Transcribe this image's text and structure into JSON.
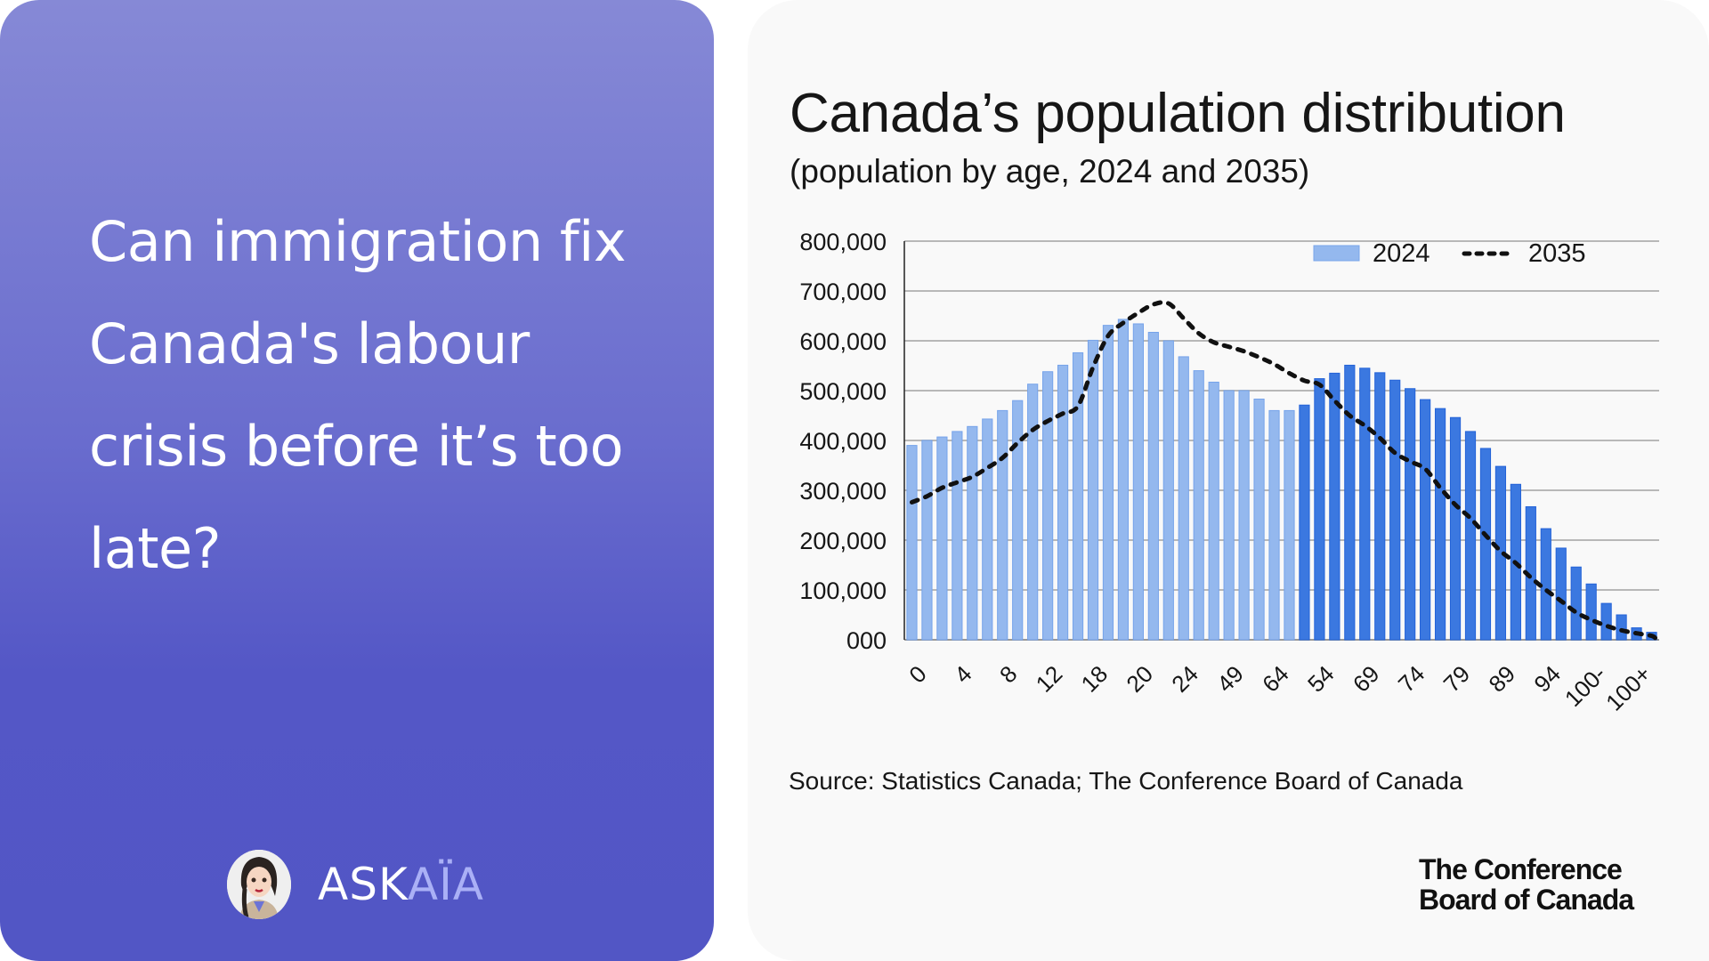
{
  "left": {
    "headline": "Can immigration fix Canada's labour crisis before it’s too late?",
    "brand": {
      "name_main": "ASK",
      "name_accent": "AÏA",
      "avatar_icon": "woman-avatar-icon"
    }
  },
  "colors": {
    "bar_2024_light": "#94b8ee",
    "bar_2024_dark": "#3b78e0",
    "line_2035": "#111111",
    "panel_gradient_top": "#8689d6",
    "panel_gradient_bottom": "#5256c5",
    "brand_accent": "#aab0f6"
  },
  "chart_data": {
    "type": "bar",
    "title": "Canada’s population distribution",
    "subtitle": "(population by age, 2024 and 2035)",
    "ylim": [
      0,
      800000
    ],
    "y_ticks": [
      "800,000",
      "700,000",
      "600,000",
      "500,000",
      "400,000",
      "300,000",
      "200,000",
      "100,000",
      "000"
    ],
    "x_tick_labels": [
      "0",
      "4",
      "8",
      "12",
      "18",
      "20",
      "24",
      "49",
      "64",
      "54",
      "69",
      "74",
      "79",
      "89",
      "94",
      "100-",
      "100+"
    ],
    "grid": true,
    "legend_position": "top-right",
    "series": [
      {
        "name": "2024",
        "type": "bar",
        "values": [
          390000,
          400000,
          407000,
          418000,
          428000,
          443000,
          460000,
          480000,
          513000,
          538000,
          551000,
          576000,
          601000,
          631000,
          643000,
          634000,
          617000,
          600000,
          568000,
          540000,
          517000,
          500000,
          500000,
          483000,
          460000,
          460000,
          471000,
          524000,
          535000,
          551000,
          545000,
          536000,
          521000,
          504000,
          482000,
          464000,
          446000,
          418000,
          384000,
          348000,
          312000,
          267000,
          223000,
          184000,
          146000,
          112000,
          73000,
          50000,
          24000,
          15000
        ]
      },
      {
        "name": "2035",
        "type": "line",
        "style": "dashed",
        "values": [
          276000,
          288000,
          305000,
          316000,
          327000,
          345000,
          365000,
          395000,
          421000,
          439000,
          454000,
          469000,
          547000,
          610000,
          636000,
          656000,
          673000,
          675000,
          645000,
          615000,
          597000,
          588000,
          579000,
          567000,
          553000,
          535000,
          520000,
          512000,
          480000,
          450000,
          430000,
          405000,
          375000,
          358000,
          343000,
          305000,
          271000,
          244000,
          210000,
          178000,
          154000,
          125000,
          100000,
          78000,
          55000,
          40000,
          28000,
          19000,
          13000,
          8000
        ]
      }
    ],
    "source": "Source: Statistics Canada; The Conference Board of Canada"
  },
  "logo": {
    "line1": "The Conference",
    "line2": "Board of Canada"
  }
}
